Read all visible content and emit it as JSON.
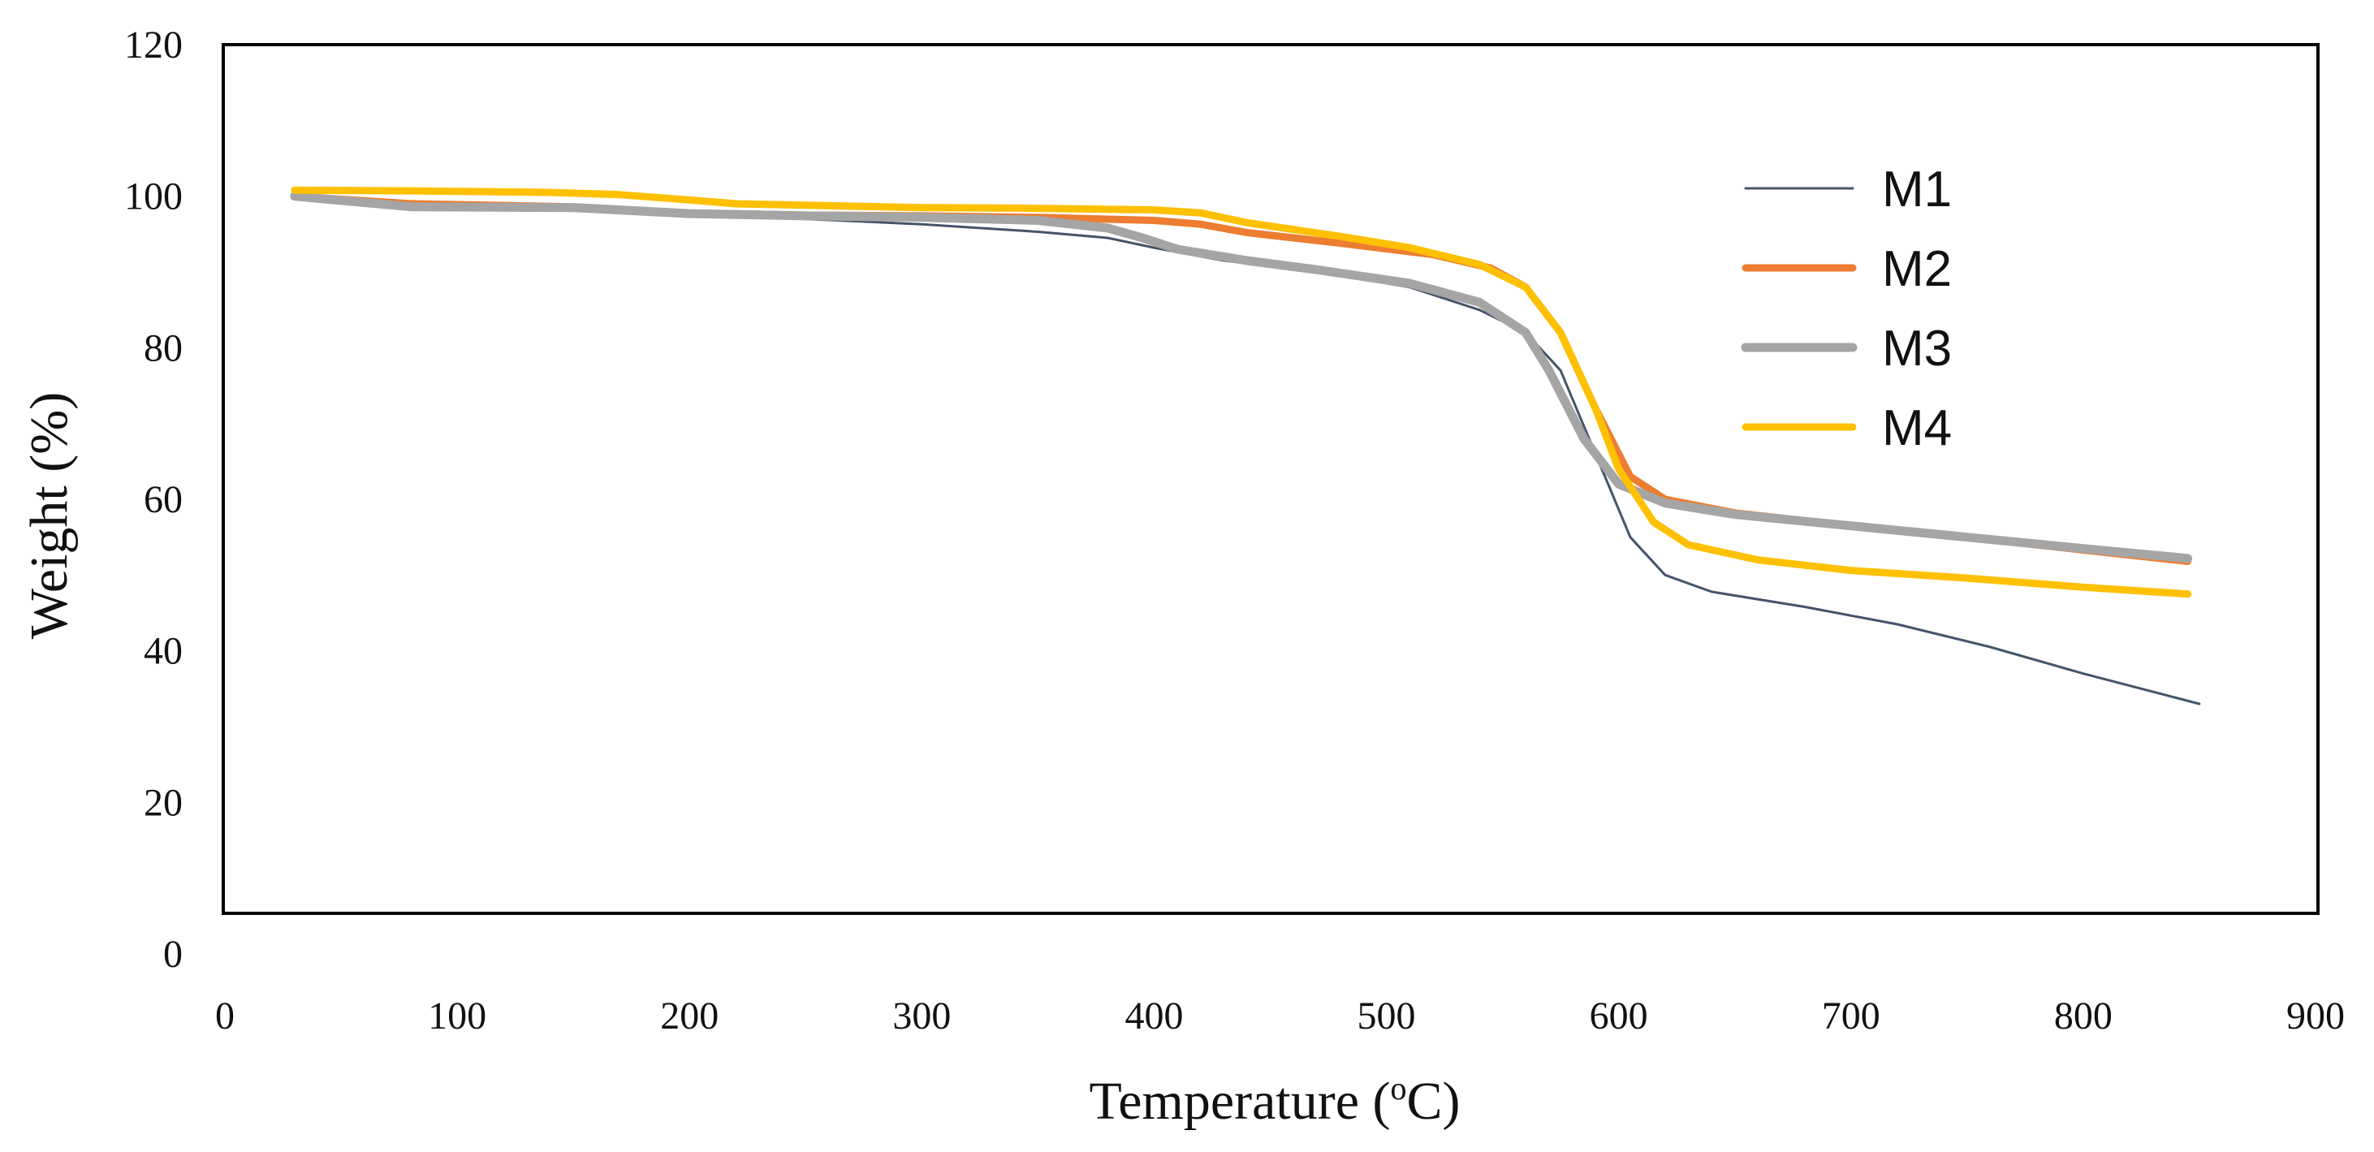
{
  "chart_data": {
    "type": "line",
    "title": "",
    "xlabel": "Temperature (",
    "xlabel_sup": "o",
    "xlabel_tail": "C)",
    "ylabel": "Weight (%)",
    "xlim": [
      0,
      900
    ],
    "ylim": [
      0,
      120
    ],
    "x_ticks": [
      "0",
      "100",
      "200",
      "300",
      "400",
      "500",
      "600",
      "700",
      "800",
      "900"
    ],
    "y_ticks": [
      "0",
      "20",
      "40",
      "60",
      "80",
      "100",
      "120"
    ],
    "grid": false,
    "legend_position": "top-right",
    "series": [
      {
        "name": "M1",
        "color": "#44546a",
        "points": [
          [
            30,
            100
          ],
          [
            80,
            98.5
          ],
          [
            150,
            98.4
          ],
          [
            200,
            97.5
          ],
          [
            250,
            97
          ],
          [
            300,
            96.3
          ],
          [
            350,
            95.3
          ],
          [
            380,
            94.5
          ],
          [
            400,
            93.2
          ],
          [
            430,
            91.5
          ],
          [
            470,
            90
          ],
          [
            510,
            88
          ],
          [
            540,
            85
          ],
          [
            560,
            82
          ],
          [
            575,
            77
          ],
          [
            590,
            66
          ],
          [
            605,
            55
          ],
          [
            620,
            50
          ],
          [
            640,
            47.8
          ],
          [
            680,
            45.8
          ],
          [
            720,
            43.5
          ],
          [
            760,
            40.5
          ],
          [
            800,
            37
          ],
          [
            850,
            33
          ]
        ]
      },
      {
        "name": "M2",
        "color": "#ed7d31",
        "points": [
          [
            30,
            100
          ],
          [
            80,
            99
          ],
          [
            150,
            98.6
          ],
          [
            200,
            97.8
          ],
          [
            250,
            97.5
          ],
          [
            300,
            97.4
          ],
          [
            350,
            97.2
          ],
          [
            400,
            96.8
          ],
          [
            420,
            96.3
          ],
          [
            440,
            95.2
          ],
          [
            480,
            93.8
          ],
          [
            520,
            92.3
          ],
          [
            545,
            90.5
          ],
          [
            560,
            88
          ],
          [
            575,
            82
          ],
          [
            590,
            72
          ],
          [
            605,
            63
          ],
          [
            620,
            60
          ],
          [
            650,
            58.2
          ],
          [
            700,
            56.5
          ],
          [
            750,
            55
          ],
          [
            800,
            53.3
          ],
          [
            845,
            51.8
          ]
        ]
      },
      {
        "name": "M3",
        "color": "#a5a5a5",
        "points": [
          [
            30,
            100
          ],
          [
            80,
            98.6
          ],
          [
            150,
            98.5
          ],
          [
            200,
            97.7
          ],
          [
            250,
            97.4
          ],
          [
            300,
            97.2
          ],
          [
            350,
            96.8
          ],
          [
            380,
            95.8
          ],
          [
            395,
            94.5
          ],
          [
            410,
            93
          ],
          [
            440,
            91.5
          ],
          [
            470,
            90.3
          ],
          [
            510,
            88.5
          ],
          [
            540,
            86
          ],
          [
            560,
            82
          ],
          [
            570,
            77
          ],
          [
            585,
            68
          ],
          [
            600,
            62
          ],
          [
            620,
            59.5
          ],
          [
            650,
            58
          ],
          [
            700,
            56.5
          ],
          [
            750,
            55
          ],
          [
            800,
            53.5
          ],
          [
            845,
            52.2
          ]
        ]
      },
      {
        "name": "M4",
        "color": "#ffc000",
        "points": [
          [
            30,
            100.8
          ],
          [
            80,
            100.7
          ],
          [
            140,
            100.5
          ],
          [
            170,
            100.2
          ],
          [
            200,
            99.5
          ],
          [
            220,
            99
          ],
          [
            300,
            98.5
          ],
          [
            350,
            98.4
          ],
          [
            400,
            98.2
          ],
          [
            420,
            97.8
          ],
          [
            440,
            96.5
          ],
          [
            480,
            94.7
          ],
          [
            510,
            93.2
          ],
          [
            540,
            91
          ],
          [
            560,
            88
          ],
          [
            575,
            82
          ],
          [
            590,
            72
          ],
          [
            600,
            64
          ],
          [
            615,
            57
          ],
          [
            630,
            54
          ],
          [
            660,
            52
          ],
          [
            700,
            50.6
          ],
          [
            750,
            49.6
          ],
          [
            800,
            48.4
          ],
          [
            845,
            47.5
          ]
        ]
      }
    ]
  }
}
